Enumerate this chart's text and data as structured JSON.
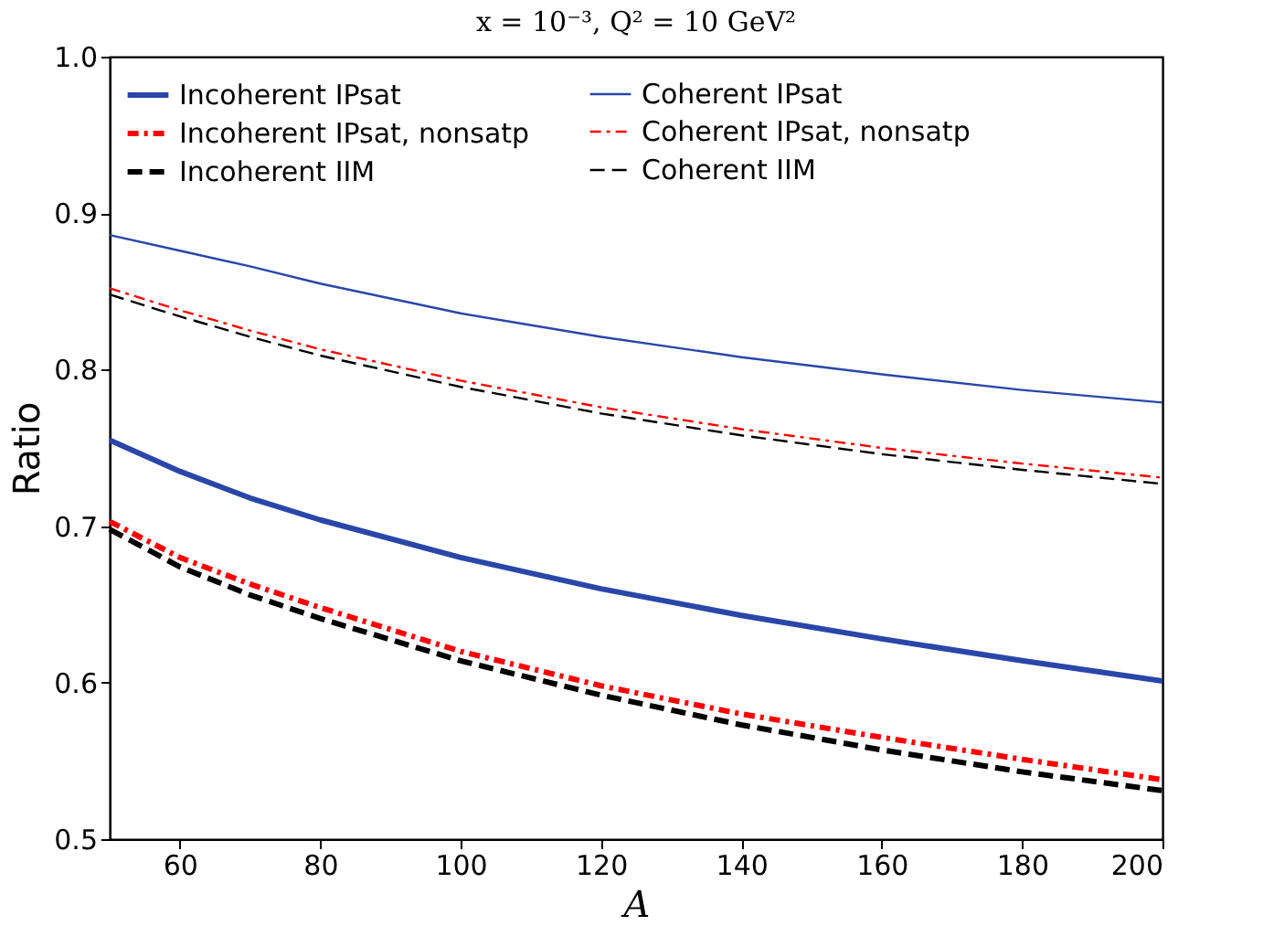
{
  "chart_data": {
    "type": "line",
    "title": "x = 10⁻³, Q² = 10 GeV²",
    "xlabel": "A",
    "ylabel": "Ratio",
    "x": [
      50,
      60,
      70,
      80,
      100,
      120,
      140,
      160,
      180,
      200
    ],
    "xlim": [
      50,
      200
    ],
    "xticks": [
      60,
      80,
      100,
      120,
      140,
      160,
      180,
      200
    ],
    "ylim": [
      0.5,
      1.0
    ],
    "yticks": [
      0.5,
      0.6,
      0.7,
      0.8,
      0.9,
      {
        "value": 1.0,
        "label": "1.0"
      }
    ],
    "grid": false,
    "legend": "top left",
    "marker": "none",
    "series": [
      {
        "name": "Incoherent IPsat",
        "color": "#2a46a8",
        "line_style": "solid",
        "values": [
          0.755,
          0.735,
          0.718,
          0.704,
          0.68,
          0.66,
          0.643,
          0.628,
          0.614,
          0.601
        ]
      },
      {
        "name": "Incoherent IPsat, nonsatp",
        "color": "#ff0000",
        "line_style": "dotted",
        "values": [
          0.703,
          0.68,
          0.663,
          0.648,
          0.62,
          0.598,
          0.58,
          0.565,
          0.551,
          0.538
        ]
      },
      {
        "name": "Incoherent IIM",
        "color": "#000000",
        "line_style": "dashed",
        "values": [
          0.698,
          0.674,
          0.656,
          0.641,
          0.614,
          0.592,
          0.573,
          0.557,
          0.543,
          0.531
        ]
      },
      {
        "name": "Coherent IPsat",
        "color": "#2a46a8",
        "line_style": "solid",
        "values": [
          0.886,
          0.876,
          0.866,
          0.855,
          0.836,
          0.821,
          0.808,
          0.797,
          0.787,
          0.779
        ]
      },
      {
        "name": "Coherent IPsat, nonsatp",
        "color": "#ff0000",
        "line_style": "dotted",
        "values": [
          0.852,
          0.838,
          0.825,
          0.813,
          0.793,
          0.776,
          0.762,
          0.75,
          0.74,
          0.731
        ]
      },
      {
        "name": "Coherent IIM",
        "color": "#000000",
        "line_style": "dashed",
        "values": [
          0.848,
          0.834,
          0.821,
          0.809,
          0.789,
          0.772,
          0.758,
          0.746,
          0.736,
          0.727
        ]
      }
    ]
  }
}
